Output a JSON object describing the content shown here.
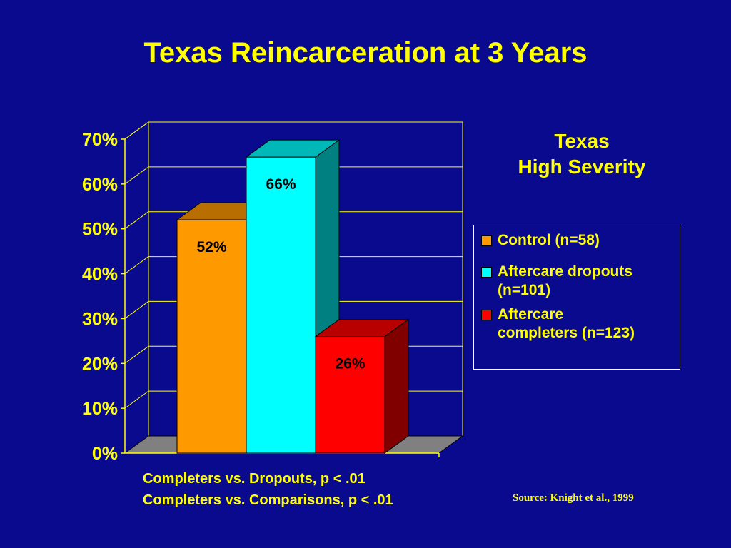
{
  "title": "Texas Reincarceration at 3 Years",
  "subtitle": [
    "Texas",
    "High Severity"
  ],
  "chart_data": {
    "type": "bar",
    "categories": [
      "Control (n=58)",
      "Aftercare dropouts (n=101)",
      "Aftercare completers (n=123)"
    ],
    "values": [
      52,
      66,
      26
    ],
    "value_labels": [
      "52%",
      "66%",
      "26%"
    ],
    "ylim": [
      0,
      70
    ],
    "yticks": [
      0,
      10,
      20,
      30,
      40,
      50,
      60,
      70
    ],
    "ytick_labels": [
      "0%",
      "10%",
      "20%",
      "30%",
      "40%",
      "50%",
      "60%",
      "70%"
    ],
    "grid": true,
    "legend_position": "right",
    "colors": {
      "Control (n=58)": "#ff9900",
      "Aftercare dropouts (n=101)": "#00ffff",
      "Aftercare completers (n=123)": "#ff0000"
    }
  },
  "legend": [
    {
      "lines": [
        "Control (n=58)"
      ],
      "color": "#ff9900"
    },
    {
      "lines": [
        "Aftercare dropouts",
        "(n=101)"
      ],
      "color": "#00ffff"
    },
    {
      "lines": [
        "Aftercare",
        "completers (n=123)"
      ],
      "color": "#ff0000"
    }
  ],
  "notes": [
    "Completers vs. Dropouts, p < .01",
    "Completers vs. Comparisons, p < .01"
  ],
  "source": "Source: Knight et al., 1999",
  "colors": {
    "background": "#0a0a8f",
    "text": "#ffff00"
  }
}
